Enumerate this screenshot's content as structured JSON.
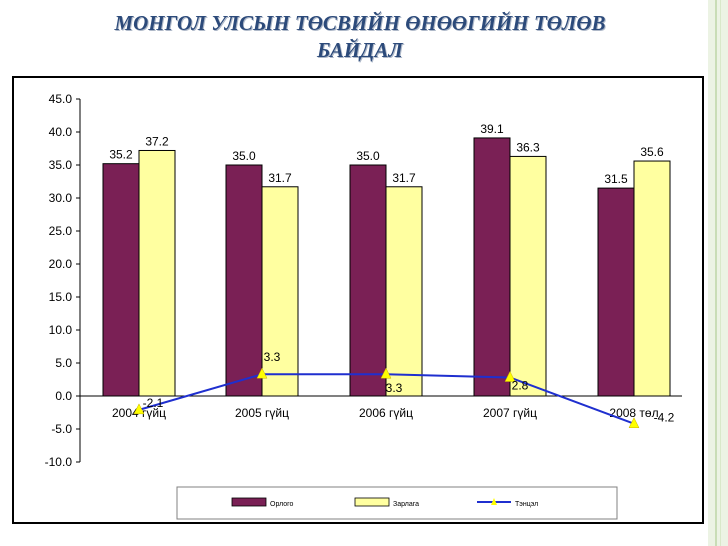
{
  "slide": {
    "title_line1": "МОНГОЛ УЛСЫН ТӨСВИЙН  ӨНӨӨГИЙН  ТӨЛӨВ",
    "title_line2": "БАЙДАЛ"
  },
  "chart_data": {
    "type": "bar",
    "categories": [
      "2004 гүйц",
      "2005 гүйц",
      "2006 гүйц",
      "2007 гүйц",
      "2008 төл"
    ],
    "series": [
      {
        "name": "Орлого",
        "type": "bar",
        "color": "#7a2055",
        "values": [
          35.2,
          35.0,
          35.0,
          39.1,
          31.5
        ]
      },
      {
        "name": "Зарлага",
        "type": "bar",
        "color": "#ffffa0",
        "values": [
          37.2,
          31.7,
          31.7,
          36.3,
          35.6
        ]
      },
      {
        "name": "Тэнцэл",
        "type": "line",
        "color": "#1f2fcf",
        "marker_color": "#ffff00",
        "values": [
          -2.1,
          3.3,
          3.3,
          2.8,
          -4.2
        ]
      }
    ],
    "data_labels": {
      "bars": [
        [
          "35.2",
          "37.2"
        ],
        [
          "35.0",
          "31.7"
        ],
        [
          "35.0",
          "31.7"
        ],
        [
          "39.1",
          "36.3"
        ],
        [
          "31.5",
          "35.6"
        ]
      ],
      "line": [
        "-2.1",
        "3.3",
        "3.3",
        "2.8",
        "-4.2"
      ]
    },
    "y_ticks": [
      "45.0",
      "40.0",
      "35.0",
      "30.0",
      "25.0",
      "20.0",
      "15.0",
      "10.0",
      "5.0",
      "0.0",
      "-5.0",
      "-10.0"
    ],
    "ylim": [
      -10,
      45
    ],
    "title": "",
    "xlabel": "",
    "ylabel": "",
    "grid": false,
    "legend_position": "bottom"
  }
}
